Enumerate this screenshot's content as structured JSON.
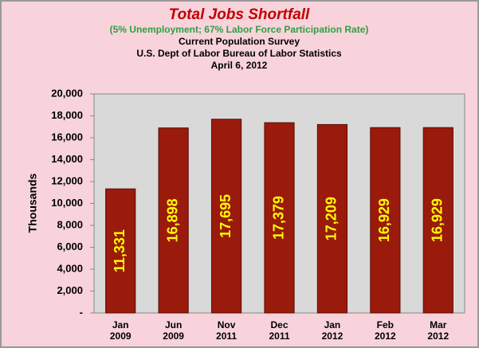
{
  "chart_data": {
    "type": "bar",
    "title": "Total Jobs Shortfall",
    "subtitle": "(5% Unemployment; 67% Labor Force Participation Rate)",
    "caption": [
      "Current Population Survey",
      "U.S. Dept of Labor Bureau of Labor Statistics",
      "April 6, 2012"
    ],
    "y_label": "Thousands",
    "categories": [
      "Jan 2009",
      "Jun 2009",
      "Nov 2011",
      "Dec 2011",
      "Jan 2012",
      "Feb 2012",
      "Mar 2012"
    ],
    "values": [
      11331,
      16898,
      17695,
      17379,
      17209,
      16929,
      16929
    ],
    "value_labels": [
      "11,331",
      "16,898",
      "17,695",
      "17,379",
      "17,209",
      "16,929",
      "16,929"
    ],
    "color": "#9a1a0c",
    "ylim": [
      0,
      20000
    ],
    "yticks": [
      {
        "value": 0,
        "label": "-"
      },
      {
        "value": 2000,
        "label": "2,000"
      },
      {
        "value": 4000,
        "label": "4,000"
      },
      {
        "value": 6000,
        "label": "6,000"
      },
      {
        "value": 8000,
        "label": "8,000"
      },
      {
        "value": 10000,
        "label": "10,000"
      },
      {
        "value": 12000,
        "label": "12,000"
      },
      {
        "value": 14000,
        "label": "14,000"
      },
      {
        "value": 16000,
        "label": "16,000"
      },
      {
        "value": 18000,
        "label": "18,000"
      },
      {
        "value": 20000,
        "label": "20,000"
      }
    ],
    "grid": false
  }
}
